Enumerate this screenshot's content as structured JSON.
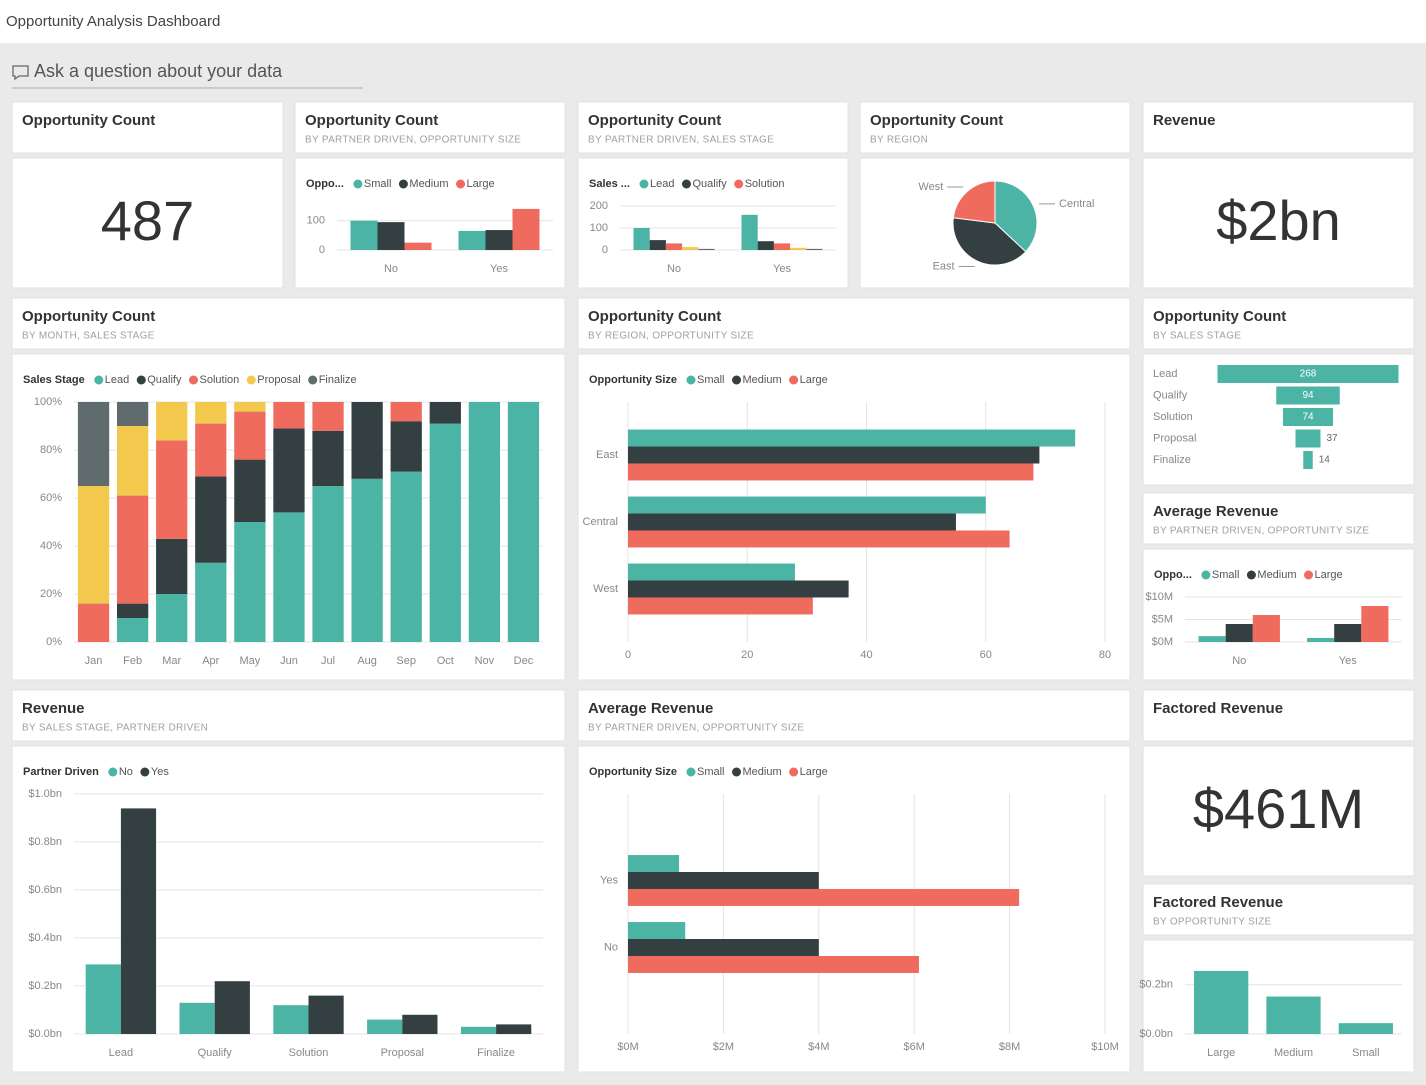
{
  "header": {
    "title": "Opportunity Analysis Dashboard"
  },
  "qna": {
    "placeholder": "Ask a question about your data"
  },
  "tiles": [
    {
      "title": "Opportunity Count",
      "kpi": "487"
    },
    {
      "title": "Opportunity Count",
      "subtitle": "BY PARTNER DRIVEN, OPPORTUNITY SIZE",
      "chart": {
        "type": "bar",
        "legend_title": "Oppo...",
        "categories": [
          "No",
          "Yes"
        ],
        "series": [
          {
            "name": "Small",
            "color": "#4bb4a5",
            "values": [
              100,
              65
            ]
          },
          {
            "name": "Medium",
            "color": "#333f40",
            "values": [
              95,
              68
            ]
          },
          {
            "name": "Large",
            "color": "#ef6b5e",
            "values": [
              25,
              140
            ]
          }
        ],
        "ylim": [
          0,
          150
        ],
        "yticks": [
          0,
          100
        ],
        "grid": true
      }
    },
    {
      "title": "Opportunity Count",
      "subtitle": "BY PARTNER DRIVEN, SALES STAGE",
      "chart": {
        "type": "bar",
        "legend_title": "Sales ...",
        "categories": [
          "No",
          "Yes"
        ],
        "series": [
          {
            "name": "Lead",
            "color": "#4bb4a5",
            "values": [
              100,
              160
            ]
          },
          {
            "name": "Qualify",
            "color": "#333f40",
            "values": [
              45,
              40
            ]
          },
          {
            "name": "Solution",
            "color": "#ef6b5e",
            "values": [
              30,
              30
            ]
          },
          {
            "color": "#f2c94c",
            "values": [
              13,
              10
            ]
          },
          {
            "color": "#5f6b6d",
            "values": [
              5,
              5
            ]
          }
        ],
        "ylim": [
          0,
          200
        ],
        "yticks": [
          0,
          100,
          200
        ],
        "grid": true
      }
    },
    {
      "title": "Opportunity Count",
      "subtitle": "BY REGION",
      "chart": {
        "type": "pie",
        "categories": [
          "Central",
          "East",
          "West"
        ],
        "values": [
          180,
          195,
          112
        ],
        "colors": [
          "#4bb4a5",
          "#333f40",
          "#ef6b5e"
        ]
      }
    },
    {
      "title": "Revenue",
      "kpi": "$2bn"
    },
    {
      "title": "Opportunity Count",
      "subtitle": "BY MONTH, SALES STAGE",
      "chart": {
        "type": "stacked_bar",
        "legend_title": "Sales Stage",
        "categories": [
          "Jan",
          "Feb",
          "Mar",
          "Apr",
          "May",
          "Jun",
          "Jul",
          "Aug",
          "Sep",
          "Oct",
          "Nov",
          "Dec"
        ],
        "series": [
          {
            "name": "Lead",
            "color": "#4bb4a5",
            "values": [
              0,
              10,
              20,
              33,
              50,
              54,
              65,
              68,
              71,
              91,
              100,
              100
            ]
          },
          {
            "name": "Qualify",
            "color": "#333f40",
            "values": [
              0,
              6,
              23,
              36,
              26,
              35,
              23,
              32,
              21,
              9,
              0,
              0
            ]
          },
          {
            "name": "Solution",
            "color": "#ef6b5e",
            "values": [
              16,
              45,
              41,
              22,
              20,
              11,
              12,
              0,
              8,
              0,
              0,
              0
            ]
          },
          {
            "name": "Proposal",
            "color": "#f2c94c",
            "values": [
              49,
              29,
              16,
              9,
              4,
              0,
              0,
              0,
              0,
              0,
              0,
              0
            ]
          },
          {
            "name": "Finalize",
            "color": "#5f6b6d",
            "values": [
              35,
              10,
              0,
              0,
              0,
              0,
              0,
              0,
              0,
              0,
              0,
              0
            ]
          }
        ],
        "ylim": [
          0,
          100
        ],
        "yticks": [
          {
            "value": 0,
            "label": "0%"
          },
          {
            "value": 20,
            "label": "20%"
          },
          {
            "value": 40,
            "label": "40%"
          },
          {
            "value": 60,
            "label": "60%"
          },
          {
            "value": 80,
            "label": "80%"
          },
          {
            "value": 100,
            "label": "100%"
          }
        ],
        "grid": true
      }
    },
    {
      "title": "Opportunity Count",
      "subtitle": "BY REGION, OPPORTUNITY SIZE",
      "chart": {
        "type": "hbar",
        "legend_title": "Opportunity Size",
        "categories": [
          "East",
          "Central",
          "West"
        ],
        "series": [
          {
            "name": "Small",
            "color": "#4bb4a5",
            "values": [
              75,
              60,
              28
            ]
          },
          {
            "name": "Medium",
            "color": "#333f40",
            "values": [
              69,
              55,
              37
            ]
          },
          {
            "name": "Large",
            "color": "#ef6b5e",
            "values": [
              68,
              64,
              31
            ]
          }
        ],
        "xlim": [
          0,
          80
        ],
        "xticks": [
          0,
          20,
          40,
          60,
          80
        ],
        "grid": true
      }
    },
    {
      "title": "Opportunity Count",
      "subtitle": "BY SALES STAGE",
      "chart": {
        "type": "funnel",
        "categories": [
          "Lead",
          "Qualify",
          "Solution",
          "Proposal",
          "Finalize"
        ],
        "values": [
          268,
          94,
          74,
          37,
          14
        ],
        "color": "#4bb4a5"
      }
    },
    {
      "title": "Average Revenue",
      "subtitle": "BY PARTNER DRIVEN, OPPORTUNITY SIZE",
      "chart": {
        "type": "bar",
        "legend_title": "Oppo...",
        "categories": [
          "No",
          "Yes"
        ],
        "series": [
          {
            "name": "Small",
            "color": "#4bb4a5",
            "values": [
              1300000,
              900000
            ]
          },
          {
            "name": "Medium",
            "color": "#333f40",
            "values": [
              4000000,
              4000000
            ]
          },
          {
            "name": "Large",
            "color": "#ef6b5e",
            "values": [
              6000000,
              8000000
            ]
          }
        ],
        "ylim": [
          0,
          10000000
        ],
        "yticks": [
          {
            "value": 0,
            "label": "$0M"
          },
          {
            "value": 5000000,
            "label": "$5M"
          },
          {
            "value": 10000000,
            "label": "$10M"
          }
        ],
        "grid": true
      }
    },
    {
      "title": "Revenue",
      "subtitle": "BY SALES STAGE, PARTNER DRIVEN",
      "chart": {
        "type": "bar",
        "legend_title": "Partner Driven",
        "categories": [
          "Lead",
          "Qualify",
          "Solution",
          "Proposal",
          "Finalize"
        ],
        "series": [
          {
            "name": "No",
            "color": "#4bb4a5",
            "values": [
              290000000,
              130000000,
              120000000,
              60000000,
              30000000
            ]
          },
          {
            "name": "Yes",
            "color": "#333f40",
            "values": [
              940000000,
              220000000,
              160000000,
              80000000,
              40000000
            ]
          }
        ],
        "ylim": [
          0,
          1000000000
        ],
        "yticks": [
          {
            "value": 0,
            "label": "$0.0bn"
          },
          {
            "value": 200000000,
            "label": "$0.2bn"
          },
          {
            "value": 400000000,
            "label": "$0.4bn"
          },
          {
            "value": 600000000,
            "label": "$0.6bn"
          },
          {
            "value": 800000000,
            "label": "$0.8bn"
          },
          {
            "value": 1000000000,
            "label": "$1.0bn"
          }
        ],
        "grid": true
      }
    },
    {
      "title": "Average Revenue",
      "subtitle": "BY PARTNER DRIVEN, OPPORTUNITY SIZE",
      "chart": {
        "type": "hbar",
        "legend_title": "Opportunity Size",
        "categories": [
          "Yes",
          "No"
        ],
        "series": [
          {
            "name": "Small",
            "color": "#4bb4a5",
            "values": [
              1070000,
              1200000
            ]
          },
          {
            "name": "Medium",
            "color": "#333f40",
            "values": [
              4000000,
              4000000
            ]
          },
          {
            "name": "Large",
            "color": "#ef6b5e",
            "values": [
              8200000,
              6100000
            ]
          }
        ],
        "xlim": [
          0,
          10000000
        ],
        "xticks": [
          {
            "value": 0,
            "label": "$0M"
          },
          {
            "value": 2000000,
            "label": "$2M"
          },
          {
            "value": 4000000,
            "label": "$4M"
          },
          {
            "value": 6000000,
            "label": "$6M"
          },
          {
            "value": 8000000,
            "label": "$8M"
          },
          {
            "value": 10000000,
            "label": "$10M"
          }
        ],
        "grid": true
      }
    },
    {
      "title": "Factored Revenue",
      "kpi": "$461M"
    },
    {
      "title": "Factored Revenue",
      "subtitle": "BY OPPORTUNITY SIZE",
      "chart": {
        "type": "bar",
        "categories": [
          "Large",
          "Medium",
          "Small"
        ],
        "values": [
          256000000,
          152000000,
          44000000
        ],
        "color": "#4bb4a5",
        "ylim": [
          0,
          280000000
        ],
        "yticks": [
          {
            "value": 0,
            "label": "$0.0bn"
          },
          {
            "value": 200000000,
            "label": "$0.2bn"
          }
        ],
        "grid": true
      }
    }
  ]
}
